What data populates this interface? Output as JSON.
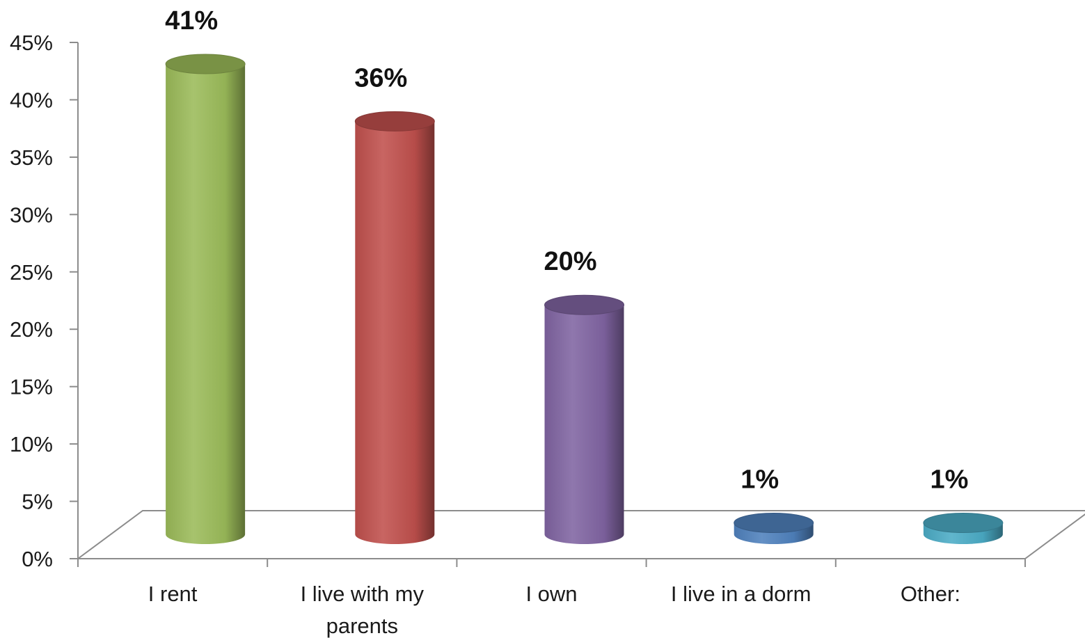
{
  "chart_data": {
    "type": "bar",
    "style": "3d-cylinder",
    "categories": [
      "I rent",
      "I live with my parents",
      "I own",
      "I live in a dorm",
      "Other:"
    ],
    "category_label_lines": [
      [
        "I rent"
      ],
      [
        "I live with my",
        "parents"
      ],
      [
        "I own"
      ],
      [
        "I live in a dorm"
      ],
      [
        "Other:"
      ]
    ],
    "values": [
      41,
      36,
      20,
      1,
      1
    ],
    "data_labels": [
      "41%",
      "36%",
      "20%",
      "1%",
      "1%"
    ],
    "colors": [
      "#9bbb59",
      "#c0504d",
      "#8064a2",
      "#4f81bd",
      "#4bacc6"
    ],
    "ylim": [
      0,
      45
    ],
    "yticks": [
      0,
      5,
      10,
      15,
      20,
      25,
      30,
      35,
      40,
      45
    ],
    "ytick_labels": [
      "0%",
      "5%",
      "10%",
      "15%",
      "20%",
      "25%",
      "30%",
      "35%",
      "40%",
      "45%"
    ],
    "title": "",
    "xlabel": "",
    "ylabel": "",
    "grid": false,
    "legend": "none"
  }
}
